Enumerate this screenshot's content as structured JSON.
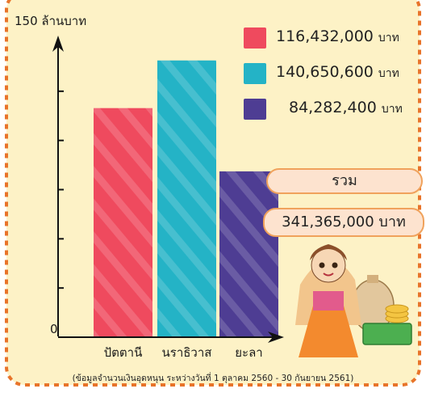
{
  "chart_data": {
    "type": "bar",
    "title": "",
    "ylabel_top": "150 ล้านบาท",
    "y_zero_label": "0",
    "ylim": [
      0,
      150
    ],
    "y_unit": "ล้านบาท",
    "categories": [
      "ปัตตานี",
      "นราธิวาส",
      "ยะลา"
    ],
    "values": [
      116.432,
      140.6506,
      84.2824
    ],
    "colors": [
      "#ef4a5e",
      "#24b3c6",
      "#4e3d93"
    ],
    "legend": [
      {
        "value_label": "116,432,000",
        "unit": "บาท",
        "color": "#ef4a5e"
      },
      {
        "value_label": "140,650,600",
        "unit": "บาท",
        "color": "#24b3c6"
      },
      {
        "value_label": "84,282,400",
        "unit": "บาท",
        "color": "#4e3d93"
      }
    ],
    "total": {
      "label": "รวม",
      "value_label": "341,365,000 บาท"
    },
    "footnote": "(ข้อมูลจำนวนเงินอุดหนุน ระหว่างวันที่ 1 ตุลาคม 2560 - 30 กันยายน 2561)"
  },
  "colors": {
    "background": "#fdf2c6",
    "border_dash": "#e8742a",
    "axis": "#111111"
  }
}
